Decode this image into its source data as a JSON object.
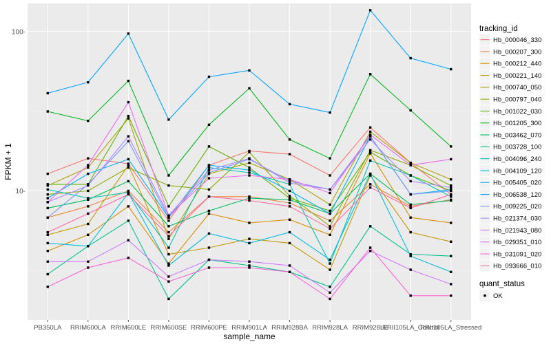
{
  "chart_data": {
    "type": "line",
    "xlabel": "sample_name",
    "ylabel": "FPKM + 1",
    "y_scale": "log10",
    "ylim": [
      1.55,
      150
    ],
    "y_ticks": [
      {
        "value": 10,
        "label": "10-"
      },
      {
        "value": 100,
        "label": "100-"
      }
    ],
    "grid": true,
    "legend_position": "right",
    "categories": [
      "PB350LA",
      "RRIM600LA",
      "RRIM600LE",
      "RRIM600SE",
      "RRIM600PE",
      "RRIM901LA",
      "RRIM928BA",
      "RRIM928LA",
      "RRIM928LE",
      "RRII105LA_Control",
      "RRII105LA_Stressed"
    ],
    "category_tick_labels": [
      "PB350LA",
      "RRIM600LA",
      "RRIM600LE",
      "RRIM600SE",
      "RRIM600PE",
      "RRIM901LA",
      "RRIM928BA",
      "RRIM928LA",
      "RRIM928LE",
      "RRII105LA_Control",
      "RRII105LA_Stressed"
    ],
    "legend": {
      "title": "tracking_id",
      "quant_title": "quant_status",
      "quant_items": [
        "OK"
      ]
    },
    "series": [
      {
        "name": "Hb_000046_330",
        "color": "#F8766D",
        "values": [
          12.8,
          16,
          14.8,
          6.5,
          14.5,
          17.8,
          17,
          12.5,
          25,
          15,
          9.5
        ]
      },
      {
        "name": "Hb_000207_300",
        "color": "#EC8239",
        "values": [
          6.8,
          8,
          10,
          5.5,
          9.2,
          9.2,
          8.4,
          6.5,
          11,
          8,
          8.8
        ]
      },
      {
        "name": "Hb_000212_440",
        "color": "#DB8E00",
        "values": [
          4.2,
          5.3,
          8,
          3.5,
          7.2,
          6.3,
          6.6,
          5.3,
          17.2,
          6.8,
          6.3
        ]
      },
      {
        "name": "Hb_000221_140",
        "color": "#C79800",
        "values": [
          5.3,
          6.2,
          14.5,
          4,
          4.4,
          5,
          4.7,
          3.2,
          12.5,
          5.5,
          4.8
        ]
      },
      {
        "name": "Hb_000740_050",
        "color": "#AEA200",
        "values": [
          10.8,
          14,
          28.5,
          5,
          12.8,
          15,
          11.8,
          8.2,
          23.5,
          15,
          11.8
        ]
      },
      {
        "name": "Hb_000797_040",
        "color": "#8FAA00",
        "values": [
          9.5,
          10,
          14,
          10.8,
          10.2,
          17.5,
          9.3,
          6,
          18,
          14.5,
          10.8
        ]
      },
      {
        "name": "Hb_001022_030",
        "color": "#64B200",
        "values": [
          11,
          11,
          29.5,
          8,
          19,
          14,
          9,
          7.5,
          17.5,
          12.5,
          10
        ]
      },
      {
        "name": "Hb_001205_300",
        "color": "#00B81B",
        "values": [
          31.5,
          27.5,
          49,
          12.5,
          26,
          44,
          21,
          16,
          54,
          32,
          19
        ]
      },
      {
        "name": "Hb_003462_070",
        "color": "#00BD5C",
        "values": [
          7.8,
          8.8,
          11.5,
          6,
          7.5,
          9,
          8.8,
          7.2,
          12.8,
          8.2,
          8.7
        ]
      },
      {
        "name": "Hb_003728_100",
        "color": "#00C08E",
        "values": [
          3,
          4.5,
          6.5,
          2.1,
          3.7,
          3.4,
          3.1,
          2.5,
          6,
          4,
          3.9
        ]
      },
      {
        "name": "Hb_004096_240",
        "color": "#00C1B7",
        "values": [
          10.2,
          9,
          9.8,
          4.4,
          14,
          13,
          11,
          3.5,
          15.5,
          12.5,
          9.2
        ]
      },
      {
        "name": "Hb_004109_120",
        "color": "#00BDDC",
        "values": [
          4.7,
          4.5,
          9.7,
          3.4,
          5.4,
          4.7,
          5.5,
          3.7,
          12.8,
          3.9,
          3.1
        ]
      },
      {
        "name": "Hb_005405_020",
        "color": "#00B2F3",
        "values": [
          9,
          12.8,
          15.8,
          6.8,
          14.5,
          13.5,
          10,
          7.2,
          22,
          9.5,
          10.2
        ]
      },
      {
        "name": "Hb_006538_120",
        "color": "#00A5FF",
        "values": [
          41,
          48,
          97,
          28,
          52,
          57,
          35,
          31,
          136,
          68,
          58
        ]
      },
      {
        "name": "Hb_009225_020",
        "color": "#7997FF",
        "values": [
          6.8,
          11,
          20.5,
          6.8,
          13,
          15.8,
          11.5,
          10.2,
          22,
          9.5,
          10
        ]
      },
      {
        "name": "Hb_021374_030",
        "color": "#AC88FF",
        "values": [
          8.5,
          10.8,
          22,
          7,
          13.5,
          16,
          11.2,
          10.2,
          21,
          11.5,
          10.5
        ]
      },
      {
        "name": "Hb_021943_080",
        "color": "#D078FF",
        "values": [
          3.6,
          3.6,
          4.9,
          2.9,
          3.7,
          3.6,
          3.4,
          2.3,
          4.2,
          3.2,
          2.6
        ]
      },
      {
        "name": "Hb_029351_010",
        "color": "#EC69EF",
        "values": [
          8.5,
          14.5,
          36,
          7,
          12,
          12.5,
          11.8,
          9.7,
          22.5,
          14.5,
          15.8
        ]
      },
      {
        "name": "Hb_031091_020",
        "color": "#FB61D7",
        "values": [
          2.5,
          3.3,
          3.8,
          2.7,
          3.3,
          3.3,
          3.1,
          2.1,
          4.4,
          2.2,
          2.2
        ]
      },
      {
        "name": "Hb_093666_010",
        "color": "#FF67A4",
        "values": [
          5.5,
          7.2,
          9.5,
          5.2,
          9.2,
          8.7,
          8,
          5.8,
          10.5,
          7.8,
          9.5
        ]
      }
    ]
  }
}
